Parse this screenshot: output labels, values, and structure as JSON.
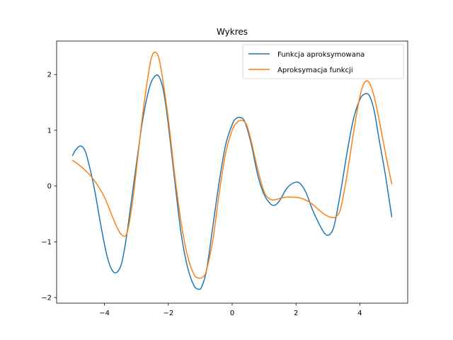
{
  "chart_data": {
    "type": "line",
    "title": "Wykres",
    "xlabel": "",
    "ylabel": "",
    "xlim": [
      -5.5,
      5.5
    ],
    "ylim": [
      -2.1,
      2.6
    ],
    "x_ticks": [
      -4,
      -2,
      0,
      2,
      4
    ],
    "x_tick_labels": [
      "−4",
      "−2",
      "0",
      "2",
      "4"
    ],
    "y_ticks": [
      -2,
      -1,
      0,
      1,
      2
    ],
    "y_tick_labels": [
      "−2",
      "−1",
      "0",
      "1",
      "2"
    ],
    "grid": false,
    "legend_position": "top-right",
    "series": [
      {
        "name": "Funkcja aproksymowana",
        "color": "#1f77b4",
        "x": [
          -5.0,
          -4.9,
          -4.75,
          -4.6,
          -4.45,
          -4.3,
          -4.1,
          -3.9,
          -3.7,
          -3.5,
          -3.35,
          -3.2,
          -3.0,
          -2.8,
          -2.6,
          -2.45,
          -2.3,
          -2.15,
          -2.0,
          -1.8,
          -1.6,
          -1.4,
          -1.2,
          -1.05,
          -0.95,
          -0.8,
          -0.6,
          -0.4,
          -0.2,
          0.0,
          0.1,
          0.25,
          0.4,
          0.6,
          0.8,
          1.0,
          1.2,
          1.35,
          1.5,
          1.7,
          1.9,
          2.1,
          2.3,
          2.5,
          2.7,
          2.9,
          3.05,
          3.2,
          3.4,
          3.6,
          3.8,
          4.0,
          4.15,
          4.3,
          4.45,
          4.6,
          4.8,
          5.0
        ],
        "y": [
          0.55,
          0.65,
          0.72,
          0.62,
          0.3,
          -0.1,
          -0.75,
          -1.3,
          -1.55,
          -1.45,
          -1.05,
          -0.45,
          0.4,
          1.2,
          1.75,
          1.95,
          1.97,
          1.7,
          1.1,
          0.1,
          -0.85,
          -1.45,
          -1.78,
          -1.85,
          -1.8,
          -1.5,
          -0.7,
          0.1,
          0.75,
          1.1,
          1.2,
          1.23,
          1.15,
          0.75,
          0.2,
          -0.15,
          -0.32,
          -0.34,
          -0.25,
          -0.05,
          0.05,
          0.06,
          -0.1,
          -0.4,
          -0.65,
          -0.85,
          -0.87,
          -0.7,
          -0.1,
          0.6,
          1.2,
          1.55,
          1.65,
          1.62,
          1.35,
          0.85,
          0.2,
          -0.55
        ]
      },
      {
        "name": "Aproksymacja funkcji",
        "color": "#ff7f0e",
        "x": [
          -5.0,
          -4.8,
          -4.6,
          -4.4,
          -4.2,
          -4.0,
          -3.8,
          -3.6,
          -3.45,
          -3.3,
          -3.15,
          -3.0,
          -2.8,
          -2.6,
          -2.5,
          -2.4,
          -2.3,
          -2.2,
          -2.0,
          -1.8,
          -1.6,
          -1.4,
          -1.2,
          -1.05,
          -0.9,
          -0.8,
          -0.6,
          -0.4,
          -0.2,
          0.0,
          0.15,
          0.3,
          0.45,
          0.6,
          0.8,
          1.0,
          1.15,
          1.3,
          1.5,
          1.7,
          1.9,
          2.1,
          2.3,
          2.5,
          2.7,
          2.9,
          3.1,
          3.25,
          3.4,
          3.6,
          3.8,
          4.0,
          4.15,
          4.3,
          4.45,
          4.6,
          4.8,
          5.0
        ],
        "y": [
          0.46,
          0.38,
          0.28,
          0.16,
          0.0,
          -0.2,
          -0.48,
          -0.75,
          -0.88,
          -0.85,
          -0.4,
          0.3,
          1.3,
          2.1,
          2.35,
          2.4,
          2.3,
          2.0,
          1.2,
          0.2,
          -0.65,
          -1.25,
          -1.58,
          -1.65,
          -1.62,
          -1.5,
          -0.95,
          -0.1,
          0.6,
          1.0,
          1.14,
          1.18,
          1.1,
          0.8,
          0.3,
          -0.1,
          -0.22,
          -0.25,
          -0.22,
          -0.2,
          -0.2,
          -0.21,
          -0.25,
          -0.32,
          -0.42,
          -0.51,
          -0.56,
          -0.55,
          -0.4,
          0.2,
          0.95,
          1.6,
          1.86,
          1.85,
          1.6,
          1.2,
          0.6,
          0.04
        ]
      }
    ]
  }
}
